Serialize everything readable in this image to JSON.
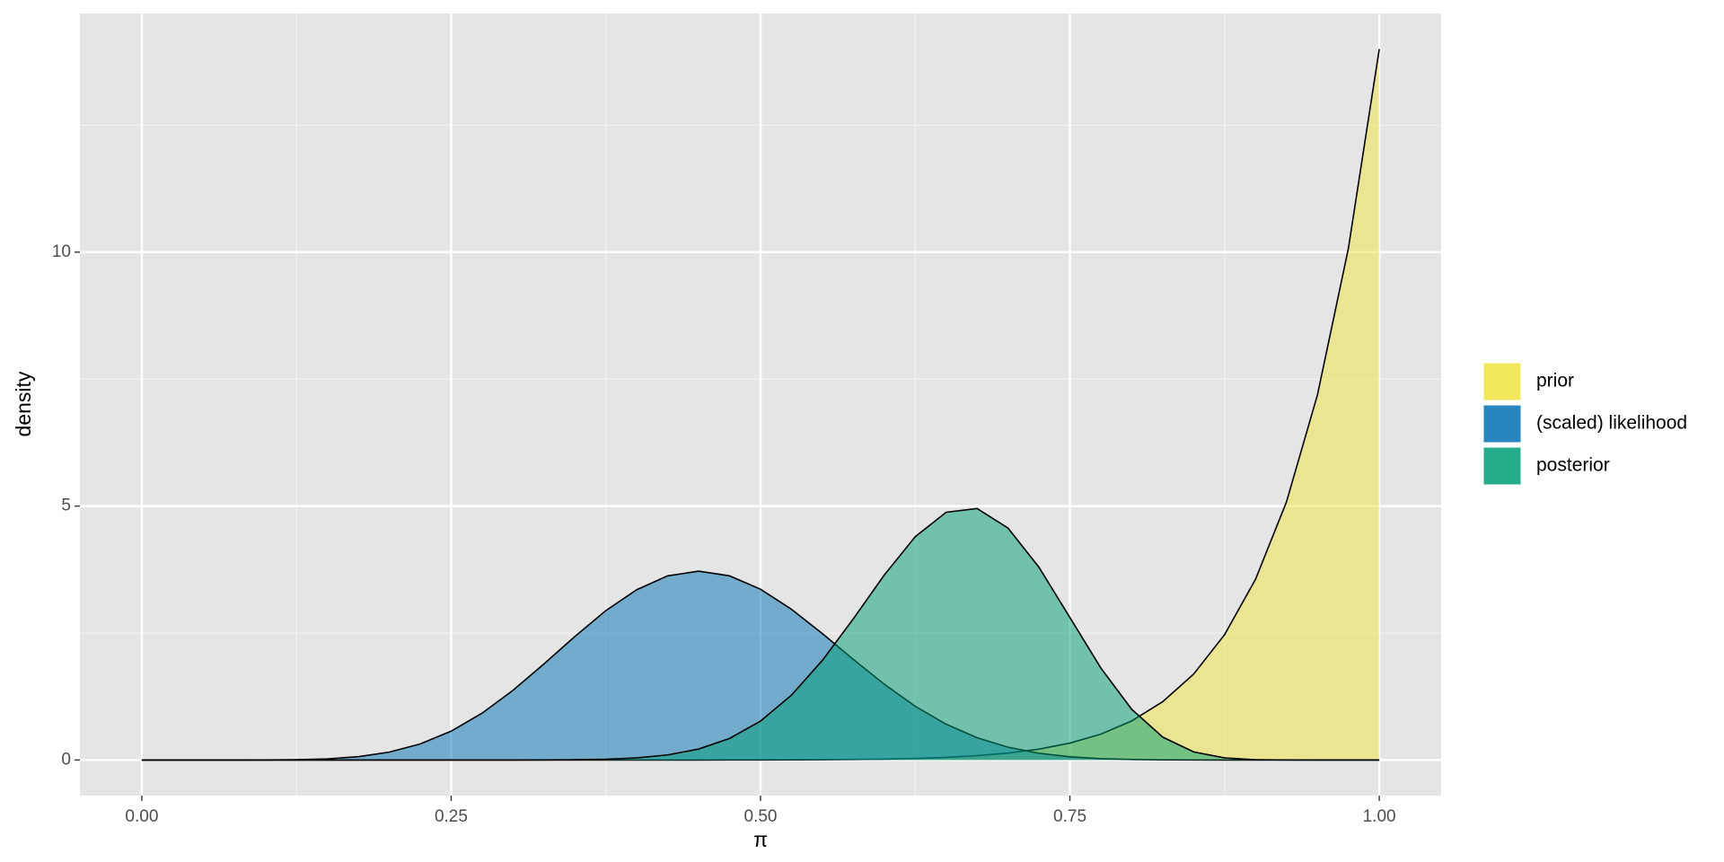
{
  "chart_data": {
    "type": "area",
    "x_label": "π",
    "y_label": "density",
    "x": [
      0,
      0.025,
      0.05,
      0.075,
      0.1,
      0.125,
      0.15,
      0.175,
      0.2,
      0.225,
      0.25,
      0.275,
      0.3,
      0.325,
      0.35,
      0.375,
      0.4,
      0.425,
      0.45,
      0.475,
      0.5,
      0.525,
      0.55,
      0.575,
      0.6,
      0.625,
      0.65,
      0.675,
      0.7,
      0.725,
      0.75,
      0.775,
      0.8,
      0.825,
      0.85,
      0.875,
      0.9,
      0.925,
      0.95,
      0.975,
      1
    ],
    "series": [
      {
        "name": "prior",
        "color": "#f0e442",
        "values": [
          0,
          0,
          0,
          0,
          0,
          0,
          0,
          0,
          0,
          0,
          0,
          0,
          0,
          0,
          0,
          0,
          0,
          0,
          0.0004,
          0.0009,
          0.0017,
          0.0032,
          0.006,
          0.011,
          0.018,
          0.031,
          0.052,
          0.085,
          0.136,
          0.214,
          0.333,
          0.509,
          0.77,
          1.148,
          1.692,
          2.468,
          3.559,
          5.082,
          7.186,
          10.07,
          14
        ]
      },
      {
        "name": "(scaled) likelihood",
        "color": "#0071b2",
        "values": [
          0,
          0,
          0,
          0,
          0.0011,
          0.006,
          0.0227,
          0.0654,
          0.155,
          0.316,
          0.568,
          0.923,
          1.373,
          1.893,
          2.433,
          2.942,
          3.354,
          3.626,
          3.719,
          3.626,
          3.364,
          2.968,
          2.489,
          1.98,
          1.492,
          1.059,
          0.705,
          0.439,
          0.252,
          0.133,
          0.063,
          0.0266,
          0.0097,
          0.0029,
          0.0007,
          0,
          0,
          0,
          0,
          0,
          0
        ]
      },
      {
        "name": "posterior",
        "color": "#009e74",
        "values": [
          0,
          0,
          0,
          0,
          0,
          0,
          0,
          0,
          0,
          0,
          0,
          0.0001,
          0.0004,
          0.0016,
          0.0054,
          0.016,
          0.042,
          0.1,
          0.216,
          0.425,
          0.767,
          1.277,
          1.962,
          2.781,
          3.643,
          4.397,
          4.879,
          4.953,
          4.567,
          3.795,
          2.806,
          1.811,
          0.997,
          0.451,
          0.16,
          0.041,
          0.0065,
          0.0005,
          0,
          0,
          0
        ]
      }
    ],
    "xlim": [
      -0.05,
      1.05
    ],
    "ylim": [
      -0.7,
      14.7
    ],
    "xticks": [
      {
        "value": 0,
        "label": "0.00"
      },
      {
        "value": 0.25,
        "label": "0.25"
      },
      {
        "value": 0.5,
        "label": "0.50"
      },
      {
        "value": 0.75,
        "label": "0.75"
      },
      {
        "value": 1,
        "label": "1.00"
      }
    ],
    "yticks": [
      0,
      5,
      10
    ],
    "xminor": [
      0.125,
      0.375,
      0.625,
      0.875
    ],
    "yminor": [
      2.5,
      7.5,
      12.5
    ],
    "grid": true,
    "legend": "right"
  }
}
